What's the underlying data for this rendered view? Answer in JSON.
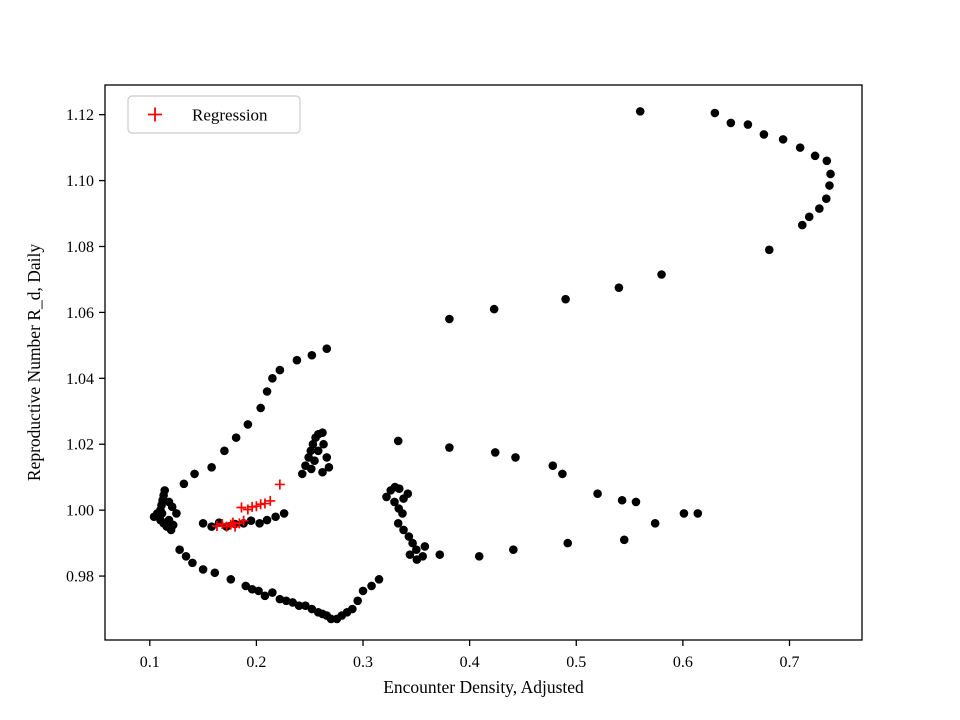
{
  "figure": {
    "background": "#ffffff"
  },
  "chart_data": {
    "type": "scatter",
    "title": "",
    "xlabel": "Encounter Density, Adjusted",
    "ylabel": "Reproductive Number R_d, Daily",
    "xlim": [
      0.058,
      0.768
    ],
    "ylim": [
      0.9606,
      1.129
    ],
    "xticks": [
      0.1,
      0.2,
      0.3,
      0.4,
      0.5,
      0.6,
      0.7
    ],
    "xtick_labels": [
      "0.1",
      "0.2",
      "0.3",
      "0.4",
      "0.5",
      "0.6",
      "0.7"
    ],
    "yticks": [
      0.98,
      1.0,
      1.02,
      1.04,
      1.06,
      1.08,
      1.1,
      1.12
    ],
    "ytick_labels": [
      "0.98",
      "1.00",
      "1.02",
      "1.04",
      "1.06",
      "1.08",
      "1.10",
      "1.12"
    ],
    "grid": false,
    "legend": {
      "position": "upper-left",
      "entries": [
        {
          "label": "Regression",
          "marker": "plus",
          "color": "#ff0000"
        }
      ]
    },
    "series": [
      {
        "name": "observations",
        "marker": "circle",
        "color": "#000000",
        "size": 4.3,
        "points": [
          [
            0.104,
            0.998
          ],
          [
            0.107,
            0.999
          ],
          [
            0.109,
            0.9985
          ],
          [
            0.11,
            1.0
          ],
          [
            0.111,
            1.0015
          ],
          [
            0.112,
            1.003
          ],
          [
            0.113,
            1.0045
          ],
          [
            0.114,
            1.006
          ],
          [
            0.1115,
            0.999
          ],
          [
            0.11,
            0.997
          ],
          [
            0.113,
            0.996
          ],
          [
            0.116,
            0.995
          ],
          [
            0.118,
            0.997
          ],
          [
            0.12,
            0.994
          ],
          [
            0.122,
            0.9955
          ],
          [
            0.125,
            0.999
          ],
          [
            0.121,
            1.001
          ],
          [
            0.118,
            1.0025
          ],
          [
            0.132,
            1.008
          ],
          [
            0.142,
            1.011
          ],
          [
            0.158,
            1.013
          ],
          [
            0.17,
            1.018
          ],
          [
            0.181,
            1.022
          ],
          [
            0.192,
            1.026
          ],
          [
            0.204,
            1.031
          ],
          [
            0.21,
            1.036
          ],
          [
            0.215,
            1.04
          ],
          [
            0.222,
            1.0425
          ],
          [
            0.238,
            1.0455
          ],
          [
            0.252,
            1.047
          ],
          [
            0.266,
            1.049
          ],
          [
            0.243,
            1.011
          ],
          [
            0.246,
            1.0135
          ],
          [
            0.249,
            1.016
          ],
          [
            0.251,
            1.018
          ],
          [
            0.253,
            1.02
          ],
          [
            0.2555,
            1.022
          ],
          [
            0.258,
            1.023
          ],
          [
            0.262,
            1.0235
          ],
          [
            0.2545,
            1.015
          ],
          [
            0.2515,
            1.0125
          ],
          [
            0.258,
            1.018
          ],
          [
            0.263,
            1.02
          ],
          [
            0.266,
            1.016
          ],
          [
            0.262,
            1.0115
          ],
          [
            0.268,
            1.013
          ],
          [
            0.333,
            1.021
          ],
          [
            0.381,
            1.019
          ],
          [
            0.424,
            1.0175
          ],
          [
            0.443,
            1.016
          ],
          [
            0.478,
            1.0135
          ],
          [
            0.487,
            1.011
          ],
          [
            0.52,
            1.005
          ],
          [
            0.543,
            1.003
          ],
          [
            0.556,
            1.0025
          ],
          [
            0.574,
            0.996
          ],
          [
            0.601,
            0.999
          ],
          [
            0.614,
            0.999
          ],
          [
            0.381,
            1.058
          ],
          [
            0.423,
            1.061
          ],
          [
            0.49,
            1.064
          ],
          [
            0.54,
            1.0675
          ],
          [
            0.58,
            1.0715
          ],
          [
            0.56,
            1.121
          ],
          [
            0.63,
            1.1205
          ],
          [
            0.645,
            1.1175
          ],
          [
            0.661,
            1.117
          ],
          [
            0.676,
            1.114
          ],
          [
            0.694,
            1.1125
          ],
          [
            0.71,
            1.11
          ],
          [
            0.724,
            1.1075
          ],
          [
            0.735,
            1.106
          ],
          [
            0.7385,
            1.102
          ],
          [
            0.7375,
            1.0985
          ],
          [
            0.7345,
            1.0945
          ],
          [
            0.728,
            1.0915
          ],
          [
            0.7185,
            1.089
          ],
          [
            0.712,
            1.0865
          ],
          [
            0.681,
            1.079
          ],
          [
            0.545,
            0.991
          ],
          [
            0.492,
            0.99
          ],
          [
            0.441,
            0.988
          ],
          [
            0.409,
            0.986
          ],
          [
            0.372,
            0.9865
          ],
          [
            0.358,
            0.989
          ],
          [
            0.322,
            1.004
          ],
          [
            0.326,
            1.006
          ],
          [
            0.33,
            1.007
          ],
          [
            0.334,
            1.0065
          ],
          [
            0.3295,
            1.0025
          ],
          [
            0.3335,
            1.0005
          ],
          [
            0.338,
            1.0035
          ],
          [
            0.342,
            1.005
          ],
          [
            0.337,
            0.999
          ],
          [
            0.333,
            0.996
          ],
          [
            0.338,
            0.994
          ],
          [
            0.343,
            0.992
          ],
          [
            0.3465,
            0.99
          ],
          [
            0.35,
            0.988
          ],
          [
            0.344,
            0.9865
          ],
          [
            0.3505,
            0.985
          ],
          [
            0.356,
            0.986
          ],
          [
            0.315,
            0.979
          ],
          [
            0.308,
            0.977
          ],
          [
            0.3,
            0.9755
          ],
          [
            0.295,
            0.9725
          ],
          [
            0.29,
            0.97
          ],
          [
            0.285,
            0.969
          ],
          [
            0.28,
            0.968
          ],
          [
            0.2755,
            0.967
          ],
          [
            0.27,
            0.967
          ],
          [
            0.266,
            0.968
          ],
          [
            0.262,
            0.9685
          ],
          [
            0.258,
            0.969
          ],
          [
            0.252,
            0.97
          ],
          [
            0.246,
            0.971
          ],
          [
            0.24,
            0.971
          ],
          [
            0.234,
            0.972
          ],
          [
            0.228,
            0.9725
          ],
          [
            0.222,
            0.973
          ],
          [
            0.215,
            0.975
          ],
          [
            0.208,
            0.974
          ],
          [
            0.202,
            0.9755
          ],
          [
            0.196,
            0.976
          ],
          [
            0.19,
            0.977
          ],
          [
            0.176,
            0.979
          ],
          [
            0.161,
            0.981
          ],
          [
            0.15,
            0.982
          ],
          [
            0.14,
            0.984
          ],
          [
            0.134,
            0.986
          ],
          [
            0.128,
            0.988
          ],
          [
            0.15,
            0.996
          ],
          [
            0.158,
            0.995
          ],
          [
            0.165,
            0.9962
          ],
          [
            0.172,
            0.995
          ],
          [
            0.18,
            0.9958
          ],
          [
            0.188,
            0.996
          ],
          [
            0.195,
            0.9968
          ],
          [
            0.203,
            0.996
          ],
          [
            0.21,
            0.997
          ],
          [
            0.218,
            0.998
          ],
          [
            0.226,
            0.999
          ]
        ]
      },
      {
        "name": "Regression",
        "marker": "plus",
        "color": "#ff0000",
        "size": 5,
        "points": [
          [
            0.163,
            0.9952
          ],
          [
            0.168,
            0.9958
          ],
          [
            0.172,
            0.995
          ],
          [
            0.176,
            0.9956
          ],
          [
            0.18,
            0.995
          ],
          [
            0.184,
            0.996
          ],
          [
            0.188,
            0.9968
          ],
          [
            0.178,
            0.9962
          ],
          [
            0.186,
            1.0008
          ],
          [
            0.192,
            1.0002
          ],
          [
            0.196,
            1.001
          ],
          [
            0.2,
            1.0012
          ],
          [
            0.204,
            1.0018
          ],
          [
            0.208,
            1.002
          ],
          [
            0.213,
            1.0028
          ],
          [
            0.222,
            1.0078
          ]
        ]
      }
    ]
  }
}
